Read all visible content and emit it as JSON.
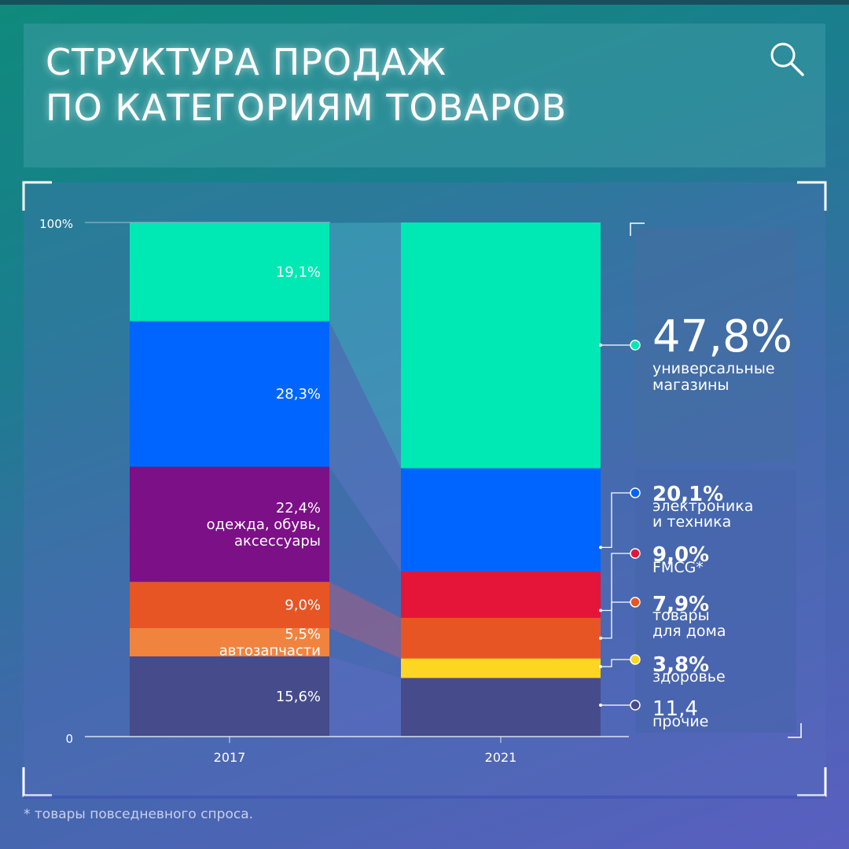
{
  "title": {
    "line1": "СТРУКТУРА ПРОДАЖ",
    "line2": "ПО КАТЕГОРИЯМ ТОВАРОВ"
  },
  "footnote": "* товары повседневного спроса.",
  "chart_data": {
    "type": "bar",
    "stacked": true,
    "categories": [
      "2017",
      "2021"
    ],
    "y_axis": {
      "ticks": [
        "100%",
        "0"
      ],
      "ylim": [
        0,
        100
      ]
    },
    "series": [
      {
        "name": "прочие",
        "color": "#464b8c",
        "values": [
          15.6,
          11.4
        ],
        "labels": [
          "15,6%",
          null
        ],
        "legend_value": "11,4",
        "legend_name": [
          "прочие"
        ]
      },
      {
        "name": "здоровье",
        "color": "#fcd622",
        "values": [
          0,
          3.8
        ],
        "labels": [
          null,
          null
        ],
        "legend_value": "3,8%",
        "legend_name": [
          "здоровье"
        ]
      },
      {
        "name": "автозапчасти",
        "color": "#f0843f",
        "values": [
          5.5,
          0
        ],
        "labels": [
          [
            "5,5%",
            "автозапчасти"
          ],
          null
        ]
      },
      {
        "name": "товары для дома",
        "color": "#e85524",
        "values": [
          9.0,
          7.9
        ],
        "labels": [
          "9,0%",
          null
        ],
        "legend_value": "7,9%",
        "legend_name": [
          "товары",
          "для дома"
        ]
      },
      {
        "name": "FMCG*",
        "color": "#e41539",
        "values": [
          0,
          9.0
        ],
        "labels": [
          null,
          null
        ],
        "legend_value": "9,0%",
        "legend_name": [
          "FMCG*"
        ]
      },
      {
        "name": "одежда, обувь, аксессуары",
        "color": "#7c1087",
        "values": [
          22.4,
          0
        ],
        "labels": [
          [
            "22,4%",
            "одежда, обувь,",
            "аксессуары"
          ],
          null
        ]
      },
      {
        "name": "электроника и техника",
        "color": "#0065ff",
        "values": [
          28.3,
          20.1
        ],
        "labels": [
          "28,3%",
          null
        ],
        "legend_value": "20,1%",
        "legend_name": [
          "электроника",
          "и техника"
        ]
      },
      {
        "name": "универсальные магазины",
        "color": "#00e8b4",
        "values": [
          19.1,
          47.8
        ],
        "labels": [
          "19,1%",
          null
        ],
        "legend_value": "47,8%",
        "legend_name": [
          "универсальные",
          "магазины"
        ]
      }
    ]
  }
}
